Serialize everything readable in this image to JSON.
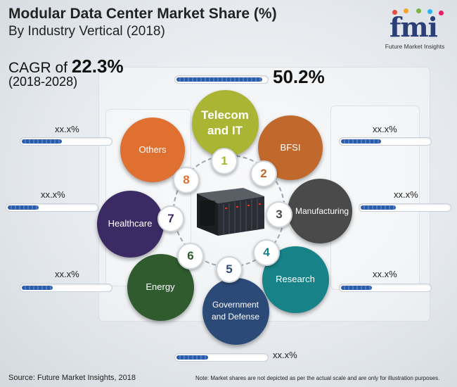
{
  "title": "Modular Data Center Market Share (%)",
  "subtitle": "By Industry Vertical (2018)",
  "cagr": {
    "prefix": "CAGR of ",
    "value": "22.3%",
    "period": "(2018-2028)"
  },
  "logo": {
    "text": "fmi",
    "subtitle": "Future Market Insights",
    "dot_colors": [
      "#e94b3c",
      "#f5a623",
      "#7cb342",
      "#29b6f6",
      "#e91e63"
    ]
  },
  "segments": [
    {
      "number": "1",
      "label": "Telecom and IT",
      "value": "50.2%",
      "color": "#a9b533",
      "bar_fill": 0.95
    },
    {
      "number": "2",
      "label": "BFSI",
      "value": "xx.x%",
      "color": "#c1692d",
      "bar_fill": 0.45
    },
    {
      "number": "3",
      "label": "Manufacturing",
      "value": "xx.x%",
      "color": "#4a4a4a",
      "bar_fill": 0.4
    },
    {
      "number": "4",
      "label": "Research",
      "value": "xx.x%",
      "color": "#178288",
      "bar_fill": 0.35
    },
    {
      "number": "5",
      "label": "Government and Defense",
      "value": "xx.x%",
      "color": "#2c4a78",
      "bar_fill": 0.35
    },
    {
      "number": "6",
      "label": "Energy",
      "value": "xx.x%",
      "color": "#2f5b2f",
      "bar_fill": 0.35
    },
    {
      "number": "7",
      "label": "Healthcare",
      "value": "xx.x%",
      "color": "#3b2a63",
      "bar_fill": 0.35
    },
    {
      "number": "8",
      "label": "Others",
      "value": "xx.x%",
      "color": "#e0702f",
      "bar_fill": 0.45
    }
  ],
  "footer": {
    "source": "Source: Future Market Insights, 2018",
    "note": "Note: Market shares are not depicted as per the actual scale and are only for illustration purposes."
  }
}
